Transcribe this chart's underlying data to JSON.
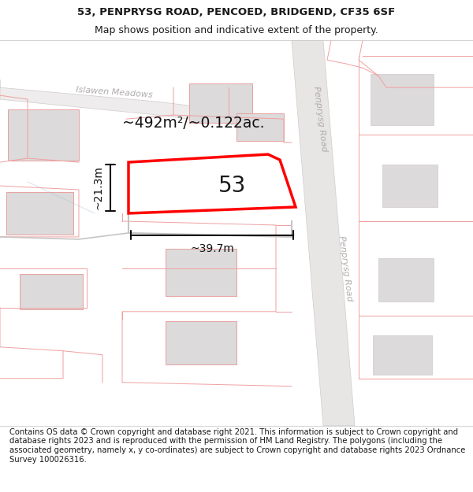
{
  "title_line1": "53, PENPRYSG ROAD, PENCOED, BRIDGEND, CF35 6SF",
  "title_line2": "Map shows position and indicative extent of the property.",
  "footer_text": "Contains OS data © Crown copyright and database right 2021. This information is subject to Crown copyright and database rights 2023 and is reproduced with the permission of HM Land Registry. The polygons (including the associated geometry, namely x, y co-ordinates) are subject to Crown copyright and database rights 2023 Ordnance Survey 100026316.",
  "area_label": "~492m²/~0.122ac.",
  "width_label": "~39.7m",
  "height_label": "~21.3m",
  "number_label": "53",
  "map_bg": "#f9f7f7",
  "road_fill": "#e8e5e5",
  "road_edge": "#d0cccc",
  "plot_color": "#ff0000",
  "building_fill": "#dcdada",
  "building_edge_pink": "#e8a0a0",
  "lot_line_color": "#f0a0a0",
  "road_label_color": "#b0acac",
  "dim_color": "#111111",
  "title_fs": 9.5,
  "subtitle_fs": 9.0,
  "footer_fs": 7.2,
  "area_fs": 13.5,
  "number_fs": 20,
  "dim_fs": 10,
  "road_label_fs": 8
}
